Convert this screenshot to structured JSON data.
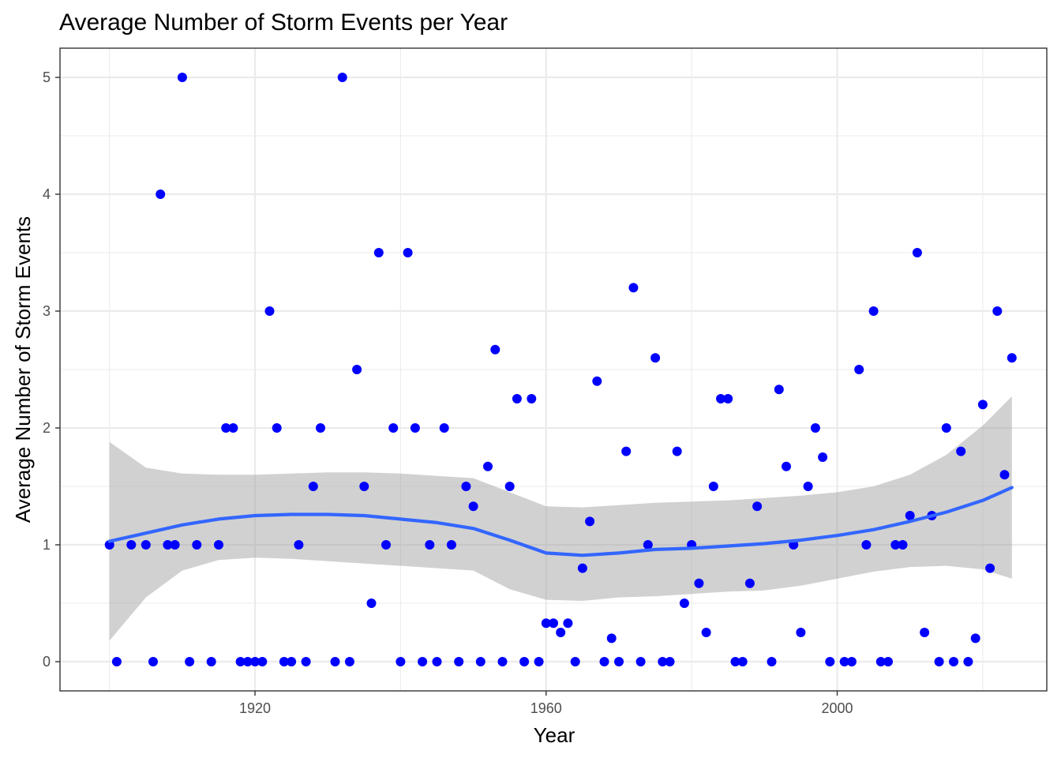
{
  "chart_data": {
    "type": "scatter",
    "title": "Average Number of Storm Events per Year",
    "xlabel": "Year",
    "ylabel": "Average Number of Storm Events",
    "xlim": [
      1893.2,
      2028.8
    ],
    "ylim": [
      -0.25,
      5.25
    ],
    "x_ticks": [
      1920,
      1960,
      2000
    ],
    "y_ticks": [
      0,
      1,
      2,
      3,
      4,
      5
    ],
    "grid": true,
    "point_color": "#0000ff",
    "smooth_color": "#3366ff",
    "ribbon_color": "#999999",
    "series": [
      {
        "points": [
          [
            1900,
            1
          ],
          [
            1901,
            0
          ],
          [
            1903,
            1
          ],
          [
            1905,
            1
          ],
          [
            1906,
            0
          ],
          [
            1907,
            4
          ],
          [
            1908,
            1
          ],
          [
            1909,
            1
          ],
          [
            1910,
            5
          ],
          [
            1911,
            0
          ],
          [
            1912,
            1
          ],
          [
            1914,
            0
          ],
          [
            1915,
            1
          ],
          [
            1916,
            2
          ],
          [
            1917,
            2
          ],
          [
            1918,
            0
          ],
          [
            1919,
            0
          ],
          [
            1920,
            0
          ],
          [
            1921,
            0
          ],
          [
            1922,
            3
          ],
          [
            1923,
            2
          ],
          [
            1924,
            0
          ],
          [
            1925,
            0
          ],
          [
            1926,
            1
          ],
          [
            1927,
            0
          ],
          [
            1928,
            1.5
          ],
          [
            1929,
            2
          ],
          [
            1931,
            0
          ],
          [
            1932,
            5
          ],
          [
            1933,
            0
          ],
          [
            1934,
            2.5
          ],
          [
            1935,
            1.5
          ],
          [
            1936,
            0.5
          ],
          [
            1937,
            3.5
          ],
          [
            1938,
            1
          ],
          [
            1939,
            2
          ],
          [
            1940,
            0
          ],
          [
            1941,
            3.5
          ],
          [
            1942,
            2
          ],
          [
            1943,
            0
          ],
          [
            1944,
            1
          ],
          [
            1945,
            0
          ],
          [
            1946,
            2
          ],
          [
            1947,
            1
          ],
          [
            1948,
            0
          ],
          [
            1949,
            1.5
          ],
          [
            1950,
            1.33
          ],
          [
            1951,
            0
          ],
          [
            1952,
            1.67
          ],
          [
            1953,
            2.67
          ],
          [
            1954,
            0
          ],
          [
            1955,
            1.5
          ],
          [
            1956,
            2.25
          ],
          [
            1957,
            0
          ],
          [
            1958,
            2.25
          ],
          [
            1959,
            0
          ],
          [
            1960,
            0.33
          ],
          [
            1961,
            0.33
          ],
          [
            1962,
            0.25
          ],
          [
            1963,
            0.33
          ],
          [
            1964,
            0
          ],
          [
            1965,
            0.8
          ],
          [
            1966,
            1.2
          ],
          [
            1967,
            2.4
          ],
          [
            1968,
            0
          ],
          [
            1969,
            0.2
          ],
          [
            1970,
            0
          ],
          [
            1971,
            1.8
          ],
          [
            1972,
            3.2
          ],
          [
            1973,
            0
          ],
          [
            1974,
            1
          ],
          [
            1975,
            2.6
          ],
          [
            1976,
            0
          ],
          [
            1977,
            0
          ],
          [
            1978,
            1.8
          ],
          [
            1979,
            0.5
          ],
          [
            1980,
            1
          ],
          [
            1981,
            0.67
          ],
          [
            1982,
            0.25
          ],
          [
            1983,
            1.5
          ],
          [
            1984,
            2.25
          ],
          [
            1985,
            2.25
          ],
          [
            1986,
            0
          ],
          [
            1987,
            0
          ],
          [
            1988,
            0.67
          ],
          [
            1989,
            1.33
          ],
          [
            1991,
            0
          ],
          [
            1992,
            2.33
          ],
          [
            1993,
            1.67
          ],
          [
            1994,
            1
          ],
          [
            1995,
            0.25
          ],
          [
            1996,
            1.5
          ],
          [
            1997,
            2
          ],
          [
            1998,
            1.75
          ],
          [
            1999,
            0
          ],
          [
            2001,
            0
          ],
          [
            2002,
            0
          ],
          [
            2003,
            2.5
          ],
          [
            2004,
            1
          ],
          [
            2005,
            3
          ],
          [
            2006,
            0
          ],
          [
            2007,
            0
          ],
          [
            2008,
            1
          ],
          [
            2009,
            1
          ],
          [
            2010,
            1.25
          ],
          [
            2011,
            3.5
          ],
          [
            2012,
            0.25
          ],
          [
            2013,
            1.25
          ],
          [
            2014,
            0
          ],
          [
            2015,
            2
          ],
          [
            2016,
            0
          ],
          [
            2017,
            1.8
          ],
          [
            2018,
            0
          ],
          [
            2019,
            0.2
          ],
          [
            2020,
            2.2
          ],
          [
            2021,
            0.8
          ],
          [
            2022,
            3
          ],
          [
            2023,
            1.6
          ],
          [
            2024,
            2.6
          ]
        ]
      }
    ],
    "smooth": {
      "x": [
        1900,
        1905,
        1910,
        1915,
        1920,
        1925,
        1930,
        1935,
        1940,
        1945,
        1950,
        1955,
        1960,
        1965,
        1970,
        1975,
        1980,
        1985,
        1990,
        1995,
        2000,
        2005,
        2010,
        2015,
        2020,
        2024
      ],
      "y": [
        1.03,
        1.1,
        1.17,
        1.22,
        1.25,
        1.26,
        1.26,
        1.25,
        1.22,
        1.19,
        1.14,
        1.04,
        0.93,
        0.91,
        0.93,
        0.96,
        0.97,
        0.99,
        1.01,
        1.04,
        1.08,
        1.13,
        1.2,
        1.28,
        1.38,
        1.49
      ],
      "lower": [
        0.18,
        0.55,
        0.78,
        0.87,
        0.89,
        0.88,
        0.86,
        0.84,
        0.82,
        0.8,
        0.78,
        0.62,
        0.53,
        0.52,
        0.55,
        0.56,
        0.58,
        0.6,
        0.61,
        0.65,
        0.71,
        0.77,
        0.81,
        0.82,
        0.79,
        0.71
      ],
      "upper": [
        1.88,
        1.66,
        1.61,
        1.6,
        1.6,
        1.61,
        1.62,
        1.62,
        1.61,
        1.59,
        1.57,
        1.45,
        1.33,
        1.32,
        1.34,
        1.36,
        1.37,
        1.38,
        1.4,
        1.42,
        1.45,
        1.5,
        1.6,
        1.77,
        2.02,
        2.27
      ]
    }
  }
}
